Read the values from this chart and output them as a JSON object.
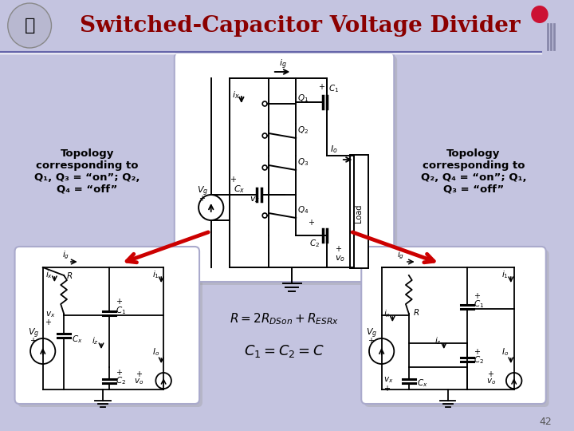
{
  "title": "Switched-Capacitor Voltage Divider",
  "title_color": "#8B0000",
  "background_color": "#C4C4E0",
  "slide_number": "42",
  "text_left": "Topology\ncorresponding to\nQ₁, Q₃ = “on”; Q₂,\nQ₄ = “off”",
  "text_right": "Topology\ncorresponding to\nQ₂, Q₄ = “on”; Q₁,\nQ₃ = “off”",
  "arrow_color": "#CC0000",
  "line_color": "#000000",
  "box_bg": "#FFFFFF",
  "box_edge": "#AAAACC",
  "shadow_color": "#999999"
}
